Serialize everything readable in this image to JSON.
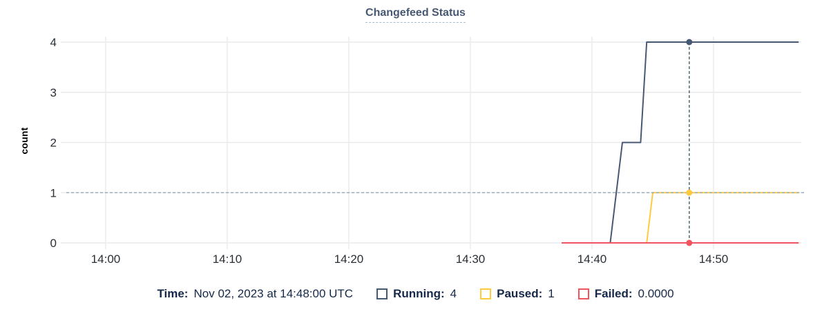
{
  "title": "Changefeed Status",
  "y_axis_label": "count",
  "tooltip": {
    "time_label": "Time:",
    "time_value": "Nov 02, 2023 at 14:48:00 UTC",
    "series": [
      {
        "name": "running",
        "label": "Running:",
        "value": "4",
        "color": "#475872"
      },
      {
        "name": "paused",
        "label": "Paused:",
        "value": "1",
        "color": "#FFC940"
      },
      {
        "name": "failed",
        "label": "Failed:",
        "value": "0.0000",
        "color": "#F0545F"
      }
    ]
  },
  "theme": {
    "title_color": "#475872",
    "legend_text_color": "#152849",
    "axis_text_color": "#2a2f36",
    "grid_color": "#e9eaec",
    "guide_line_color": "#9aacb8",
    "crosshair_color": "#4c6b74"
  },
  "chart_data": {
    "type": "line",
    "title": "Changefeed Status",
    "xlabel": "",
    "ylabel": "count",
    "ylim": [
      0,
      4
    ],
    "y_ticks": [
      0,
      1,
      2,
      3,
      4
    ],
    "x_ticks": [
      "14:00",
      "14:10",
      "14:20",
      "14:30",
      "14:40",
      "14:50"
    ],
    "xlim": [
      "13:57:00",
      "14:57:00"
    ],
    "grid": true,
    "legend_position": "bottom",
    "series": [
      {
        "name": "Running",
        "color": "#475872",
        "points": [
          [
            "14:41:30",
            0
          ],
          [
            "14:42:30",
            2
          ],
          [
            "14:44:00",
            2
          ],
          [
            "14:44:30",
            4
          ],
          [
            "14:57:00",
            4
          ]
        ]
      },
      {
        "name": "Paused",
        "color": "#FFC940",
        "points": [
          [
            "14:44:30",
            0
          ],
          [
            "14:45:00",
            1
          ],
          [
            "14:57:00",
            1
          ]
        ]
      },
      {
        "name": "Failed",
        "color": "#F0545F",
        "points": [
          [
            "14:37:30",
            0
          ],
          [
            "14:57:00",
            0
          ]
        ]
      }
    ],
    "crosshair": {
      "time": "14:48:00",
      "guide_value": 1,
      "values": {
        "Running": 4,
        "Paused": 1,
        "Failed": 0
      }
    }
  }
}
